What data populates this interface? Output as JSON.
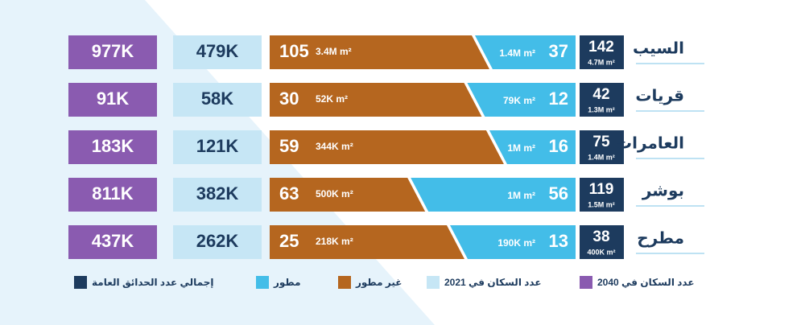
{
  "rows": [
    {
      "name": "السيب",
      "total": 142,
      "total_area": "4.7M m²",
      "developed": 37,
      "developed_area": "1.4M m²",
      "undeveloped": 105,
      "undeveloped_area": "3.4M m²",
      "pop_2021": "479K",
      "pop_2040": "977K"
    },
    {
      "name": "قريات",
      "total": 42,
      "total_area": "1.3M m²",
      "developed": 12,
      "developed_area": "79K m²",
      "undeveloped": 30,
      "undeveloped_area": "52K m²",
      "pop_2021": "58K",
      "pop_2040": "91K"
    },
    {
      "name": "العامرات",
      "total": 75,
      "total_area": "1.4M m²",
      "developed": 16,
      "developed_area": "1M m²",
      "undeveloped": 59,
      "undeveloped_area": "344K m²",
      "pop_2021": "121K",
      "pop_2040": "183K"
    },
    {
      "name": "بوشر",
      "total": 119,
      "total_area": "1.5M m²",
      "developed": 56,
      "developed_area": "1M m²",
      "undeveloped": 63,
      "undeveloped_area": "500K m²",
      "pop_2021": "382K",
      "pop_2040": "811K"
    },
    {
      "name": "مطرح",
      "total": 38,
      "total_area": "400K m²",
      "developed": 13,
      "developed_area": "190K m²",
      "undeveloped": 25,
      "undeveloped_area": "218K m²",
      "pop_2021": "262K",
      "pop_2040": "437K"
    }
  ],
  "legend": [
    {
      "label": "إجمالي عدد الحدائق العامة",
      "color": "#1d3b5e"
    },
    {
      "label": "مطور",
      "color": "#43bde8"
    },
    {
      "label": "غير مطور",
      "color": "#b5661f"
    },
    {
      "label": "عدد السكان في 2021",
      "color": "#c6e6f5"
    },
    {
      "label": "عدد السكان في 2040",
      "color": "#8a5bb0"
    }
  ]
}
